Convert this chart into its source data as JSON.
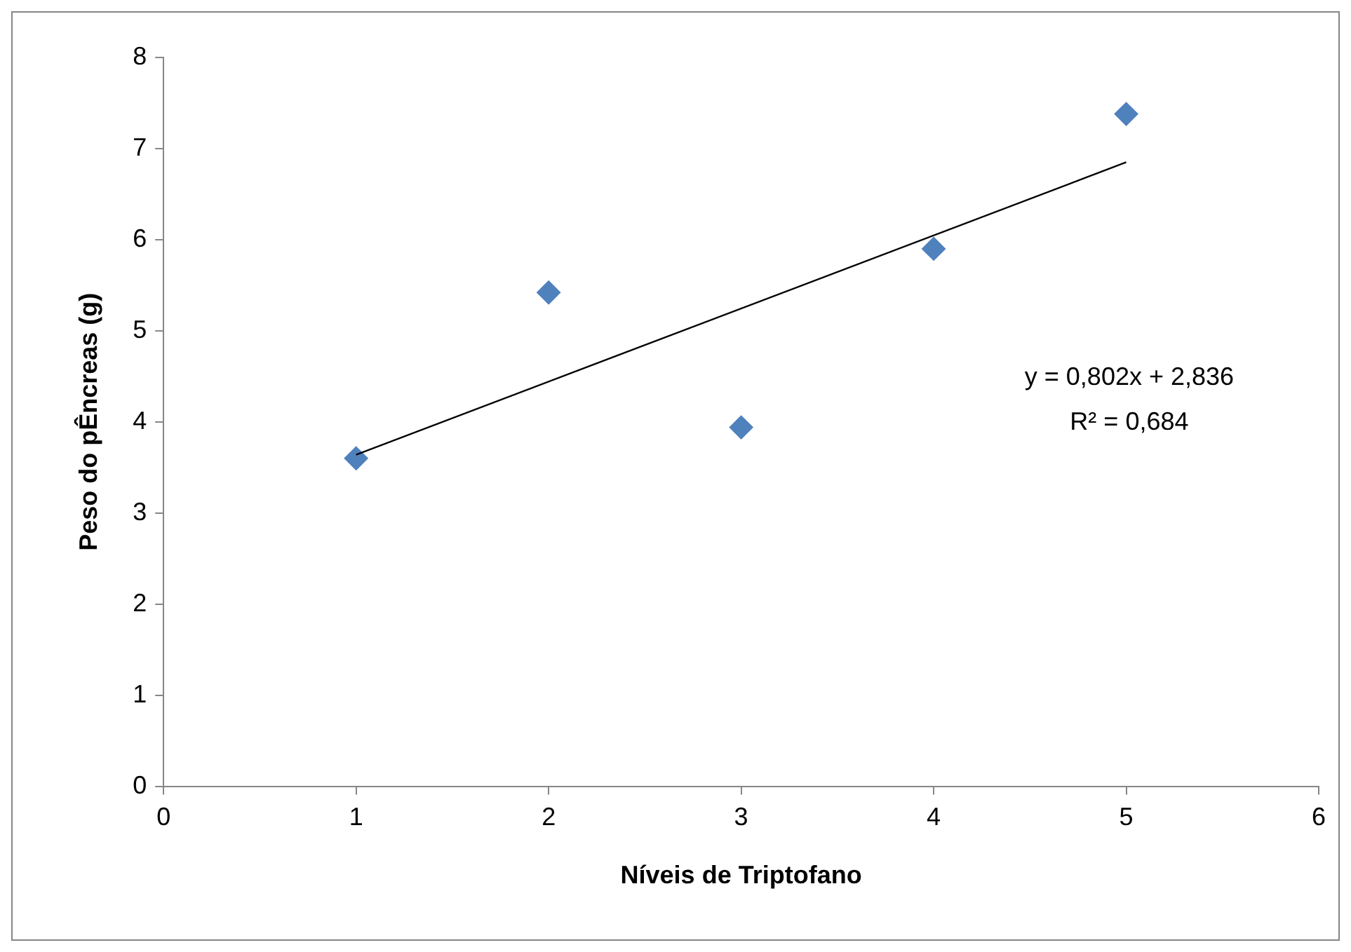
{
  "chart_data": {
    "type": "scatter",
    "xlabel": "Níveis de Triptofano",
    "ylabel": "Peso do pÊncreas (g)",
    "xlim": [
      0,
      6
    ],
    "xticks": [
      0,
      1,
      2,
      3,
      4,
      5,
      6
    ],
    "ylim": [
      0,
      8
    ],
    "yticks": [
      0,
      1,
      2,
      3,
      4,
      5,
      6,
      7,
      8
    ],
    "grid": false,
    "legend": false,
    "series": [
      {
        "x": [
          1,
          2,
          3,
          4,
          5
        ],
        "values": [
          3.6,
          5.42,
          3.94,
          5.9,
          7.38
        ],
        "color": "#4f81bd",
        "marker": "diamond"
      },
      {
        "type": "line",
        "x": [
          1,
          5
        ],
        "values": [
          3.64,
          6.85
        ],
        "color": "#000000",
        "marker": "none"
      }
    ],
    "annotations": [
      "y = 0,802x + 2,836",
      "R² = 0,684"
    ]
  }
}
